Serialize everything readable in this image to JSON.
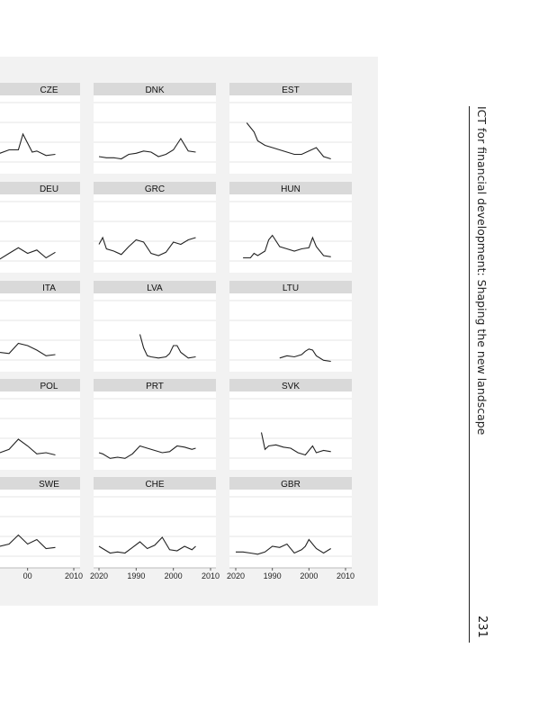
{
  "header": {
    "running_title": "ICT for financial development: Shaping the new landscape",
    "page_number": "231"
  },
  "chart_data": {
    "type": "line",
    "layout": "small-multiples",
    "grid": true,
    "x_ticks": [
      "1990",
      "2000",
      "2010",
      "2020"
    ],
    "x_tick_labels_visible": [
      "00",
      "2010",
      "2020",
      "1990",
      "2000",
      "2010",
      "2020",
      "1990",
      "2000",
      "2010",
      "2020"
    ],
    "xlim": [
      1990,
      2020
    ],
    "ylim": [
      0,
      3
    ],
    "colors": {
      "line": "#222222",
      "strip": "#d9d9d9",
      "grid": "#e6e6e6",
      "background": "#f2f2f2"
    },
    "panels": [
      {
        "label": "CZE",
        "x": [
          1990,
          1993,
          1995,
          1998,
          2000,
          2002,
          2004,
          2006,
          2008,
          2009,
          2011,
          2012,
          2014,
          2016
        ],
        "y": [
          0.85,
          0.85,
          0.8,
          0.75,
          0.7,
          0.72,
          0.75,
          0.9,
          0.9,
          1.6,
          0.8,
          0.85,
          0.65,
          0.7
        ]
      },
      {
        "label": "DNK",
        "x": [
          1990,
          1992,
          1994,
          1996,
          1998,
          2000,
          2002,
          2004,
          2006,
          2008,
          2010,
          2012,
          2014,
          2016
        ],
        "y": [
          0.6,
          0.55,
          0.55,
          0.5,
          0.7,
          0.75,
          0.85,
          0.8,
          0.6,
          0.7,
          0.9,
          1.4,
          0.85,
          0.8
        ]
      },
      {
        "label": "EST",
        "x": [
          1993,
          1995,
          1996,
          1998,
          2000,
          2002,
          2004,
          2006,
          2008,
          2010,
          2012,
          2014,
          2016
        ],
        "y": [
          2.1,
          1.7,
          1.3,
          1.1,
          1.0,
          0.9,
          0.8,
          0.7,
          0.7,
          0.85,
          1.0,
          0.6,
          0.5
        ]
      },
      {
        "label": "DEU",
        "x": [
          1990,
          1992,
          1994,
          1996,
          1998,
          2000,
          2002,
          2004,
          2006,
          2008,
          2010,
          2012,
          2014,
          2016
        ],
        "y": [
          0.8,
          0.7,
          0.9,
          0.6,
          0.75,
          1.1,
          0.5,
          0.45,
          0.7,
          0.95,
          0.7,
          0.85,
          0.5,
          0.75
        ]
      },
      {
        "label": "GRC",
        "x": [
          1990,
          1991,
          1992,
          1994,
          1996,
          1998,
          2000,
          2002,
          2004,
          2006,
          2008,
          2010,
          2012,
          2014,
          2016
        ],
        "y": [
          1.1,
          1.4,
          0.9,
          0.8,
          0.65,
          1.0,
          1.3,
          1.2,
          0.7,
          0.6,
          0.75,
          1.2,
          1.1,
          1.3,
          1.4
        ]
      },
      {
        "label": "HUN",
        "x": [
          1992,
          1994,
          1995,
          1996,
          1998,
          1999,
          2000,
          2002,
          2004,
          2006,
          2008,
          2010,
          2011,
          2012,
          2014,
          2016
        ],
        "y": [
          0.5,
          0.5,
          0.7,
          0.6,
          0.8,
          1.3,
          1.5,
          1.0,
          0.9,
          0.8,
          0.9,
          0.95,
          1.4,
          1.0,
          0.6,
          0.55
        ]
      },
      {
        "label": "ITA",
        "x": [
          1990,
          1992,
          1994,
          1996,
          1998,
          2000,
          2002,
          2004,
          2006,
          2008,
          2010,
          2012,
          2014,
          2016
        ],
        "y": [
          0.6,
          0.65,
          0.8,
          0.5,
          0.55,
          0.6,
          0.95,
          0.7,
          0.65,
          1.1,
          1.0,
          0.8,
          0.55,
          0.6
        ]
      },
      {
        "label": "LVA",
        "x": [
          2001,
          2002,
          2003,
          2004,
          2006,
          2008,
          2009,
          2010,
          2011,
          2012,
          2014,
          2016
        ],
        "y": [
          1.5,
          0.9,
          0.55,
          0.5,
          0.45,
          0.5,
          0.65,
          1.0,
          1.0,
          0.7,
          0.45,
          0.5
        ]
      },
      {
        "label": "LTU",
        "x": [
          2002,
          2004,
          2006,
          2008,
          2009,
          2010,
          2011,
          2012,
          2014,
          2016
        ],
        "y": [
          0.45,
          0.55,
          0.5,
          0.6,
          0.75,
          0.85,
          0.8,
          0.55,
          0.35,
          0.3
        ]
      },
      {
        "label": "POL",
        "x": [
          1990,
          1992,
          1994,
          1996,
          1998,
          2000,
          2002,
          2004,
          2006,
          2008,
          2010,
          2012,
          2014,
          2016
        ],
        "y": [
          0.9,
          0.95,
          0.8,
          0.7,
          0.6,
          0.75,
          0.8,
          0.6,
          0.75,
          1.2,
          0.9,
          0.55,
          0.6,
          0.5
        ]
      },
      {
        "label": "PRT",
        "x": [
          1990,
          1991,
          1993,
          1995,
          1997,
          1999,
          2001,
          2003,
          2005,
          2007,
          2009,
          2011,
          2013,
          2015,
          2016
        ],
        "y": [
          0.6,
          0.55,
          0.35,
          0.4,
          0.35,
          0.55,
          0.9,
          0.8,
          0.7,
          0.6,
          0.65,
          0.9,
          0.85,
          0.75,
          0.8
        ]
      },
      {
        "label": "SVK",
        "x": [
          1997,
          1998,
          1999,
          2001,
          2003,
          2005,
          2007,
          2009,
          2011,
          2012,
          2014,
          2016
        ],
        "y": [
          1.5,
          0.75,
          0.9,
          0.95,
          0.85,
          0.8,
          0.6,
          0.5,
          0.9,
          0.6,
          0.7,
          0.65
        ]
      },
      {
        "label": "SWE",
        "x": [
          1990,
          1992,
          1994,
          1996,
          1998,
          2000,
          2002,
          2004,
          2006,
          2008,
          2010,
          2012,
          2014,
          2016
        ],
        "y": [
          1.1,
          1.2,
          0.75,
          0.85,
          0.9,
          0.75,
          0.7,
          0.8,
          0.9,
          1.3,
          0.9,
          1.1,
          0.7,
          0.75
        ]
      },
      {
        "label": "CHE",
        "x": [
          1990,
          1991,
          1993,
          1995,
          1997,
          1999,
          2001,
          2003,
          2005,
          2007,
          2009,
          2011,
          2013,
          2015,
          2016
        ],
        "y": [
          0.8,
          0.7,
          0.5,
          0.55,
          0.5,
          0.75,
          1.0,
          0.7,
          0.85,
          1.2,
          0.65,
          0.6,
          0.8,
          0.65,
          0.8
        ]
      },
      {
        "label": "GBR",
        "x": [
          1990,
          1992,
          1994,
          1996,
          1998,
          2000,
          2002,
          2004,
          2006,
          2008,
          2009,
          2010,
          2012,
          2014,
          2016
        ],
        "y": [
          0.55,
          0.55,
          0.5,
          0.45,
          0.55,
          0.8,
          0.75,
          0.9,
          0.5,
          0.65,
          0.8,
          1.1,
          0.7,
          0.5,
          0.7
        ]
      }
    ]
  }
}
